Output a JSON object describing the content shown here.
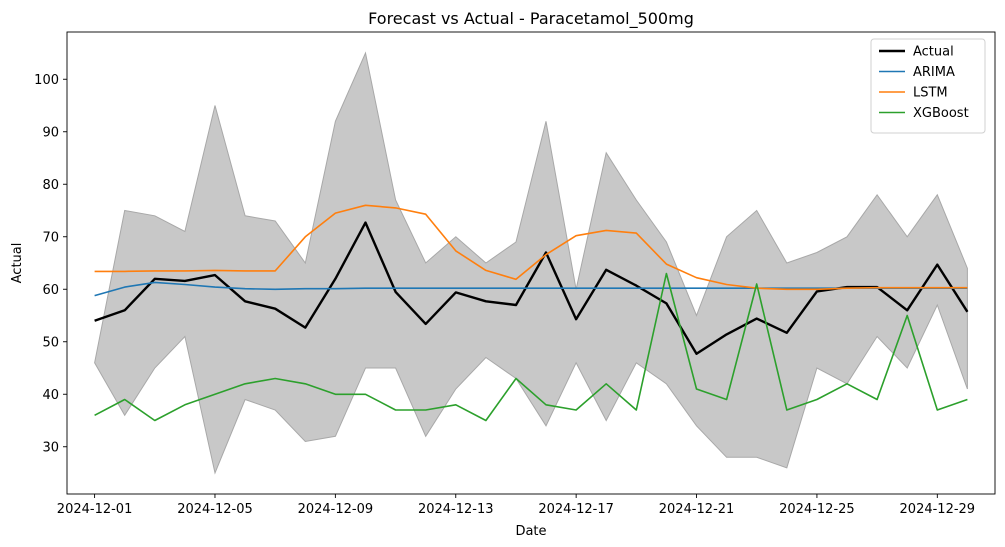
{
  "chart_data": {
    "type": "line",
    "title": "Forecast vs Actual - Paracetamol_500mg",
    "xlabel": "Date",
    "ylabel": "Actual",
    "x": [
      "2024-12-01",
      "2024-12-02",
      "2024-12-03",
      "2024-12-04",
      "2024-12-05",
      "2024-12-06",
      "2024-12-07",
      "2024-12-08",
      "2024-12-09",
      "2024-12-10",
      "2024-12-11",
      "2024-12-12",
      "2024-12-13",
      "2024-12-14",
      "2024-12-15",
      "2024-12-16",
      "2024-12-17",
      "2024-12-18",
      "2024-12-19",
      "2024-12-20",
      "2024-12-21",
      "2024-12-22",
      "2024-12-23",
      "2024-12-24",
      "2024-12-25",
      "2024-12-26",
      "2024-12-27",
      "2024-12-28",
      "2024-12-29",
      "2024-12-30"
    ],
    "xlim": [
      "2024-11-30T02:00",
      "2024-12-30T22:00"
    ],
    "ylim": [
      21,
      109
    ],
    "xticks": [
      "2024-12-01",
      "2024-12-05",
      "2024-12-09",
      "2024-12-13",
      "2024-12-17",
      "2024-12-21",
      "2024-12-25",
      "2024-12-29"
    ],
    "yticks": [
      30,
      40,
      50,
      60,
      70,
      80,
      90,
      100
    ],
    "band": {
      "upper": [
        46,
        75,
        74,
        71,
        95,
        74,
        73,
        65,
        92,
        105,
        77,
        65,
        70,
        65,
        69,
        92,
        60,
        86,
        77,
        69,
        55,
        70,
        75,
        65,
        67,
        70,
        78,
        70,
        78,
        64
      ],
      "lower": [
        46,
        36,
        45,
        51,
        25,
        39,
        37,
        31,
        32,
        45,
        45,
        32,
        41,
        47,
        43,
        34,
        46,
        35,
        46,
        42,
        34,
        28,
        28,
        26,
        45,
        42,
        51,
        45,
        57,
        41
      ],
      "color": "#c8c8c8"
    },
    "series": [
      {
        "name": "Actual",
        "color": "#000000",
        "width": 2.4,
        "values": [
          54.0,
          56.0,
          62.0,
          61.6,
          62.7,
          57.7,
          56.3,
          52.7,
          62.0,
          72.7,
          59.5,
          53.4,
          59.4,
          57.7,
          57.0,
          67.0,
          54.3,
          63.7,
          60.7,
          57.3,
          47.7,
          51.4,
          54.4,
          51.7,
          59.6,
          60.4,
          60.4,
          56.0,
          64.7,
          55.7
        ]
      },
      {
        "name": "ARIMA",
        "color": "#1f77b4",
        "width": 1.6,
        "values": [
          58.8,
          60.4,
          61.3,
          60.9,
          60.4,
          60.1,
          60.0,
          60.1,
          60.1,
          60.2,
          60.2,
          60.2,
          60.2,
          60.2,
          60.2,
          60.2,
          60.2,
          60.2,
          60.2,
          60.2,
          60.2,
          60.2,
          60.2,
          60.2,
          60.2,
          60.2,
          60.2,
          60.2,
          60.2,
          60.2
        ]
      },
      {
        "name": "LSTM",
        "color": "#ff7f0e",
        "width": 1.6,
        "values": [
          63.4,
          63.4,
          63.5,
          63.5,
          63.6,
          63.5,
          63.5,
          70.0,
          74.5,
          76.0,
          75.5,
          74.3,
          67.3,
          63.6,
          61.9,
          66.6,
          70.2,
          71.2,
          70.7,
          64.8,
          62.2,
          60.9,
          60.2,
          60.0,
          60.0,
          60.2,
          60.3,
          60.3,
          60.3,
          60.3
        ]
      },
      {
        "name": "XGBoost",
        "color": "#2ca02c",
        "width": 1.6,
        "values": [
          36,
          39,
          35,
          38,
          40,
          42,
          43,
          42,
          40,
          40,
          37,
          37,
          38,
          35,
          43,
          38,
          37,
          42,
          37,
          63,
          41,
          39,
          61,
          37,
          39,
          42,
          39,
          55,
          37,
          39
        ]
      }
    ],
    "legend": {
      "position": "top-right",
      "entries": [
        "Actual",
        "ARIMA",
        "LSTM",
        "XGBoost"
      ]
    },
    "grid": false
  }
}
